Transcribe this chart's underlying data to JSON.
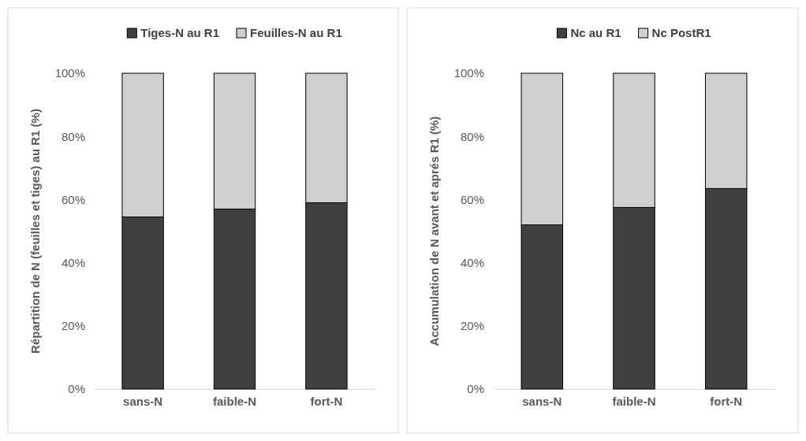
{
  "chart_data": [
    {
      "type": "bar",
      "stacked": true,
      "ylabel": "Répartition de N (feuilles et tiges)  au R1 (%)",
      "categories": [
        "sans-N",
        "faible-N",
        "fort-N"
      ],
      "ylim": [
        0,
        100
      ],
      "yticks": [
        {
          "value": 0,
          "label": "0%"
        },
        {
          "value": 20,
          "label": "20%"
        },
        {
          "value": 40,
          "label": "40%"
        },
        {
          "value": 60,
          "label": "60%"
        },
        {
          "value": 80,
          "label": "80%"
        },
        {
          "value": 100,
          "label": "100%"
        }
      ],
      "legend": "top",
      "series": [
        {
          "name": "Tiges-N au R1",
          "color": "#404040",
          "values": [
            54.5,
            57,
            59
          ]
        },
        {
          "name": "Feuilles-N au R1",
          "color": "#d0cece",
          "values": [
            45.5,
            43,
            41
          ]
        }
      ]
    },
    {
      "type": "bar",
      "stacked": true,
      "ylabel": "Accumulation de N avant et aprés R1 (%)",
      "categories": [
        "sans-N",
        "faible-N",
        "fort-N"
      ],
      "ylim": [
        0,
        100
      ],
      "yticks": [
        {
          "value": 0,
          "label": "0%"
        },
        {
          "value": 20,
          "label": "20%"
        },
        {
          "value": 40,
          "label": "40%"
        },
        {
          "value": 60,
          "label": "60%"
        },
        {
          "value": 80,
          "label": "80%"
        },
        {
          "value": 100,
          "label": "100%"
        }
      ],
      "legend": "top",
      "series": [
        {
          "name": "Nc au R1",
          "color": "#404040",
          "values": [
            52,
            57.5,
            63.5
          ]
        },
        {
          "name": "Nc PostR1",
          "color": "#d0cece",
          "values": [
            48,
            42.5,
            36.5
          ]
        }
      ]
    }
  ]
}
